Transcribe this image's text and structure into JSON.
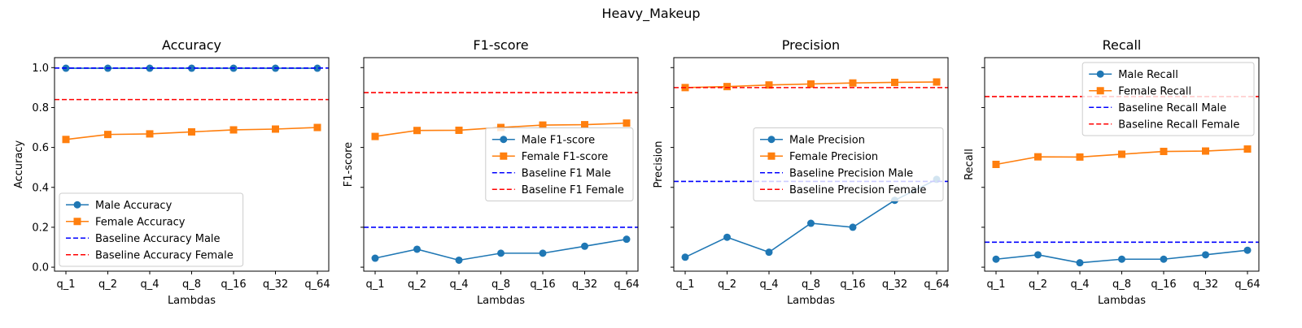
{
  "figure_title": "Heavy_Makeup",
  "chart_data": [
    {
      "type": "line",
      "title": "Accuracy",
      "xlabel": "Lambdas",
      "ylabel": "Accuracy",
      "categories": [
        "q_1",
        "q_2",
        "q_4",
        "q_8",
        "q_16",
        "q_32",
        "q_64"
      ],
      "ylim": [
        -0.02,
        1.05
      ],
      "yticks": [
        "0.0",
        "0.2",
        "0.4",
        "0.6",
        "0.8",
        "1.0"
      ],
      "show_ytick_labels": true,
      "legend_position": "lower-left",
      "series": [
        {
          "name": "Male Accuracy",
          "style": "line-circle",
          "color": "#1f77b4",
          "values": [
            0.997,
            0.997,
            0.997,
            0.997,
            0.997,
            0.997,
            0.997
          ]
        },
        {
          "name": "Female Accuracy",
          "style": "line-square",
          "color": "#ff7f0e",
          "values": [
            0.64,
            0.665,
            0.668,
            0.678,
            0.688,
            0.692,
            0.7
          ]
        },
        {
          "name": "Baseline Accuracy Male",
          "style": "dashed",
          "color": "#0000ff",
          "value": 0.998
        },
        {
          "name": "Baseline Accuracy Female",
          "style": "dashed",
          "color": "#ff0000",
          "value": 0.84
        }
      ]
    },
    {
      "type": "line",
      "title": "F1-score",
      "xlabel": "Lambdas",
      "ylabel": "F1-score",
      "categories": [
        "q_1",
        "q_2",
        "q_4",
        "q_8",
        "q_16",
        "q_32",
        "q_64"
      ],
      "ylim": [
        -0.02,
        1.05
      ],
      "yticks": [
        "",
        "",
        "",
        "",
        "",
        ""
      ],
      "show_ytick_labels": false,
      "legend_position": "center-right",
      "series": [
        {
          "name": "Male F1-score",
          "style": "line-circle",
          "color": "#1f77b4",
          "values": [
            0.045,
            0.09,
            0.035,
            0.07,
            0.07,
            0.105,
            0.14
          ]
        },
        {
          "name": "Female F1-score",
          "style": "line-square",
          "color": "#ff7f0e",
          "values": [
            0.655,
            0.685,
            0.686,
            0.7,
            0.712,
            0.714,
            0.722
          ]
        },
        {
          "name": "Baseline F1 Male",
          "style": "dashed",
          "color": "#0000ff",
          "value": 0.2
        },
        {
          "name": "Baseline F1 Female",
          "style": "dashed",
          "color": "#ff0000",
          "value": 0.875
        }
      ]
    },
    {
      "type": "line",
      "title": "Precision",
      "xlabel": "Lambdas",
      "ylabel": "Precision",
      "categories": [
        "q_1",
        "q_2",
        "q_4",
        "q_8",
        "q_16",
        "q_32",
        "q_64"
      ],
      "ylim": [
        -0.02,
        1.05
      ],
      "yticks": [
        "",
        "",
        "",
        "",
        "",
        ""
      ],
      "show_ytick_labels": false,
      "legend_position": "center-right",
      "series": [
        {
          "name": "Male Precision",
          "style": "line-circle",
          "color": "#1f77b4",
          "values": [
            0.05,
            0.15,
            0.075,
            0.22,
            0.2,
            0.335,
            0.44
          ]
        },
        {
          "name": "Female Precision",
          "style": "line-square",
          "color": "#ff7f0e",
          "values": [
            0.9,
            0.905,
            0.913,
            0.918,
            0.923,
            0.926,
            0.928
          ]
        },
        {
          "name": "Baseline Precision Male",
          "style": "dashed",
          "color": "#0000ff",
          "value": 0.43
        },
        {
          "name": "Baseline Precision Female",
          "style": "dashed",
          "color": "#ff0000",
          "value": 0.9
        }
      ]
    },
    {
      "type": "line",
      "title": "Recall",
      "xlabel": "Lambdas",
      "ylabel": "Recall",
      "categories": [
        "q_1",
        "q_2",
        "q_4",
        "q_8",
        "q_16",
        "q_32",
        "q_64"
      ],
      "ylim": [
        -0.02,
        1.05
      ],
      "yticks": [
        "",
        "",
        "",
        "",
        "",
        ""
      ],
      "show_ytick_labels": false,
      "legend_position": "upper-right",
      "series": [
        {
          "name": "Male Recall",
          "style": "line-circle",
          "color": "#1f77b4",
          "values": [
            0.04,
            0.062,
            0.022,
            0.04,
            0.04,
            0.062,
            0.085
          ]
        },
        {
          "name": "Female Recall",
          "style": "line-square",
          "color": "#ff7f0e",
          "values": [
            0.515,
            0.553,
            0.552,
            0.566,
            0.58,
            0.582,
            0.592
          ]
        },
        {
          "name": "Baseline Recall Male",
          "style": "dashed",
          "color": "#0000ff",
          "value": 0.125
        },
        {
          "name": "Baseline Recall Female",
          "style": "dashed",
          "color": "#ff0000",
          "value": 0.855
        }
      ]
    }
  ]
}
